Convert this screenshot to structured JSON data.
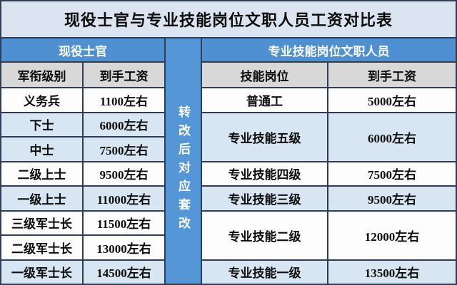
{
  "title": "现役士官与专业技能岗位文职人员工资对比表",
  "left_table": {
    "header": "现役士官",
    "col_rank": "军衔级别",
    "col_salary": "到手工资",
    "rows": [
      {
        "rank": "义务兵",
        "salary": "1100左右"
      },
      {
        "rank": "下士",
        "salary": "6000左右"
      },
      {
        "rank": "中士",
        "salary": "7500左右"
      },
      {
        "rank": "二级上士",
        "salary": "9500左右"
      },
      {
        "rank": "一级上士",
        "salary": "11000左右"
      },
      {
        "rank": "三级军士长",
        "salary": "11500左右"
      },
      {
        "rank": "二级军士长",
        "salary": "13000左右"
      },
      {
        "rank": "一级军士长",
        "salary": "14500左右"
      }
    ]
  },
  "middle_banner": {
    "label": "转改后对应套改"
  },
  "right_table": {
    "header": "专业技能岗位文职人员",
    "col_position": "技能岗位",
    "col_salary": "到手工资",
    "rows": [
      {
        "position": "普通工",
        "salary": "5000左右",
        "row_span": 1
      },
      {
        "position": "专业技能五级",
        "salary": "6000左右",
        "row_span": 2
      },
      {
        "position": "专业技能四级",
        "salary": "7500左右",
        "row_span": 1
      },
      {
        "position": "专业技能三级",
        "salary": "9500左右",
        "row_span": 1
      },
      {
        "position": "专业技能二级",
        "salary": "12000左右",
        "row_span": 2
      },
      {
        "position": "专业技能一级",
        "salary": "13500左右",
        "row_span": 1
      }
    ]
  },
  "colors": {
    "title_bg": "#dbe5f1",
    "header_blue": "#4f90d3",
    "banner_blue": "#5496d6",
    "column_header_gray": "#d8d8d8",
    "band_white": "#fdfdfe",
    "band_light_blue": "#d8e6f4",
    "border": "#2f3e54"
  },
  "chart_data": {
    "type": "table",
    "title": "现役士官与专业技能岗位文职人员工资对比表",
    "sections": [
      {
        "name": "现役士官",
        "columns": [
          "军衔级别",
          "到手工资"
        ],
        "rows": [
          [
            "义务兵",
            "1100左右"
          ],
          [
            "下士",
            "6000左右"
          ],
          [
            "中士",
            "7500左右"
          ],
          [
            "二级上士",
            "9500左右"
          ],
          [
            "一级上士",
            "11000左右"
          ],
          [
            "三级军士长",
            "11500左右"
          ],
          [
            "二级军士长",
            "13000左右"
          ],
          [
            "一级军士长",
            "14500左右"
          ]
        ]
      },
      {
        "name": "专业技能岗位文职人员",
        "columns": [
          "技能岗位",
          "到手工资"
        ],
        "rows": [
          [
            "普通工",
            "5000左右"
          ],
          [
            "专业技能五级",
            "6000左右"
          ],
          [
            "专业技能四级",
            "7500左右"
          ],
          [
            "专业技能三级",
            "9500左右"
          ],
          [
            "专业技能二级",
            "12000左右"
          ],
          [
            "专业技能一级",
            "13500左右"
          ]
        ]
      }
    ],
    "connector_label": "转改后对应套改",
    "approx_salary_values": {
      "现役士官": [
        1100,
        6000,
        7500,
        9500,
        11000,
        11500,
        13000,
        14500
      ],
      "专业技能岗位文职人员": [
        5000,
        6000,
        7500,
        9500,
        12000,
        13500
      ]
    }
  }
}
